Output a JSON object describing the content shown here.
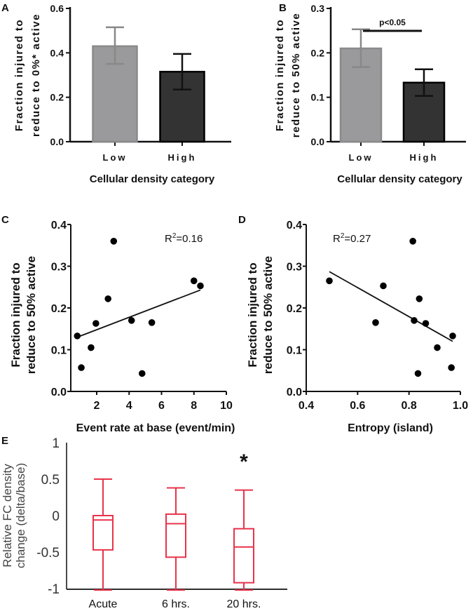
{
  "chart_data": [
    {
      "panel": "A",
      "type": "bar",
      "categories": [
        "Low",
        "High"
      ],
      "values": [
        0.43,
        0.315
      ],
      "error_low": [
        0.35,
        0.235
      ],
      "error_high": [
        0.515,
        0.395
      ],
      "colors": [
        "#9a9a9c",
        "#333333"
      ],
      "ylabel": [
        "Fraction injured to",
        "reduce to 0%* active"
      ],
      "xlabel": "Cellular density category",
      "ylim": [
        0,
        0.6
      ],
      "yticks": [
        "0.0",
        "0.2",
        "0.4",
        "0.6"
      ]
    },
    {
      "panel": "B",
      "type": "bar",
      "categories": [
        "Low",
        "High"
      ],
      "values": [
        0.21,
        0.133
      ],
      "error_low": [
        0.168,
        0.103
      ],
      "error_high": [
        0.253,
        0.163
      ],
      "colors": [
        "#9a9a9c",
        "#333333"
      ],
      "ylabel": [
        "Fraction injured to",
        "reduce to 50% active"
      ],
      "xlabel": "Cellular density category",
      "ylim": [
        0,
        0.3
      ],
      "yticks": [
        "0.0",
        "0.1",
        "0.2",
        "0.3"
      ],
      "annotation": "p<0.05"
    },
    {
      "panel": "C",
      "type": "scatter",
      "x": [
        0.8,
        1.05,
        1.65,
        1.95,
        2.7,
        3.05,
        4.15,
        4.8,
        5.4,
        8.0,
        8.4
      ],
      "y": [
        0.133,
        0.057,
        0.105,
        0.163,
        0.222,
        0.36,
        0.17,
        0.043,
        0.165,
        0.265,
        0.253
      ],
      "fit": {
        "x": [
          0.8,
          8.4
        ],
        "y": [
          0.13,
          0.243
        ]
      },
      "annotation": {
        "r2_label": "R",
        "r2_sup": "2",
        "r2_value": "=0.16"
      },
      "ylabel": [
        "Fraction injured to",
        "reduce to 50% active"
      ],
      "xlabel": "Event rate at base (event/min)",
      "xlim": [
        0.4,
        10
      ],
      "ylim": [
        0,
        0.4
      ],
      "xticks": [
        "2",
        "4",
        "6",
        "8",
        "10"
      ],
      "yticks": [
        "0.0",
        "0.1",
        "0.2",
        "0.3",
        "0.4"
      ]
    },
    {
      "panel": "D",
      "type": "scatter",
      "x": [
        0.49,
        0.67,
        0.7,
        0.815,
        0.82,
        0.84,
        0.835,
        0.865,
        0.91,
        0.965,
        0.97
      ],
      "y": [
        0.265,
        0.165,
        0.253,
        0.36,
        0.17,
        0.222,
        0.043,
        0.163,
        0.105,
        0.057,
        0.133
      ],
      "fit": {
        "x": [
          0.49,
          0.97
        ],
        "y": [
          0.287,
          0.12
        ]
      },
      "annotation": {
        "r2_label": "R",
        "r2_sup": "2",
        "r2_value": "=0.27"
      },
      "ylabel": [
        "Fraction injured to",
        "reduce to 50% active"
      ],
      "xlabel": "Entropy  (island)",
      "xlim": [
        0.4,
        1.0
      ],
      "ylim": [
        0,
        0.4
      ],
      "xticks": [
        "0.4",
        "0.6",
        "0.8",
        "1.0"
      ],
      "yticks": [
        "0.0",
        "0.1",
        "0.2",
        "0.3",
        "0.4"
      ]
    },
    {
      "panel": "E",
      "type": "box",
      "categories": [
        "Acute",
        "6 hrs.",
        "20 hrs."
      ],
      "whisker_low": [
        -1.02,
        -1.02,
        -1.02
      ],
      "q1": [
        -0.47,
        -0.57,
        -0.92
      ],
      "median": [
        -0.06,
        -0.11,
        -0.43
      ],
      "q3": [
        0.0,
        0.02,
        -0.18
      ],
      "whisker_high": [
        0.5,
        0.38,
        0.35
      ],
      "color": "#e8334a",
      "significance": [
        "",
        "",
        "*"
      ],
      "ylabel": [
        "Relative FC density",
        "change (delta/base)"
      ],
      "ylim": [
        -1,
        1
      ],
      "yticks": [
        "-1",
        "-0.5",
        "0",
        "0.5",
        "1"
      ]
    }
  ]
}
